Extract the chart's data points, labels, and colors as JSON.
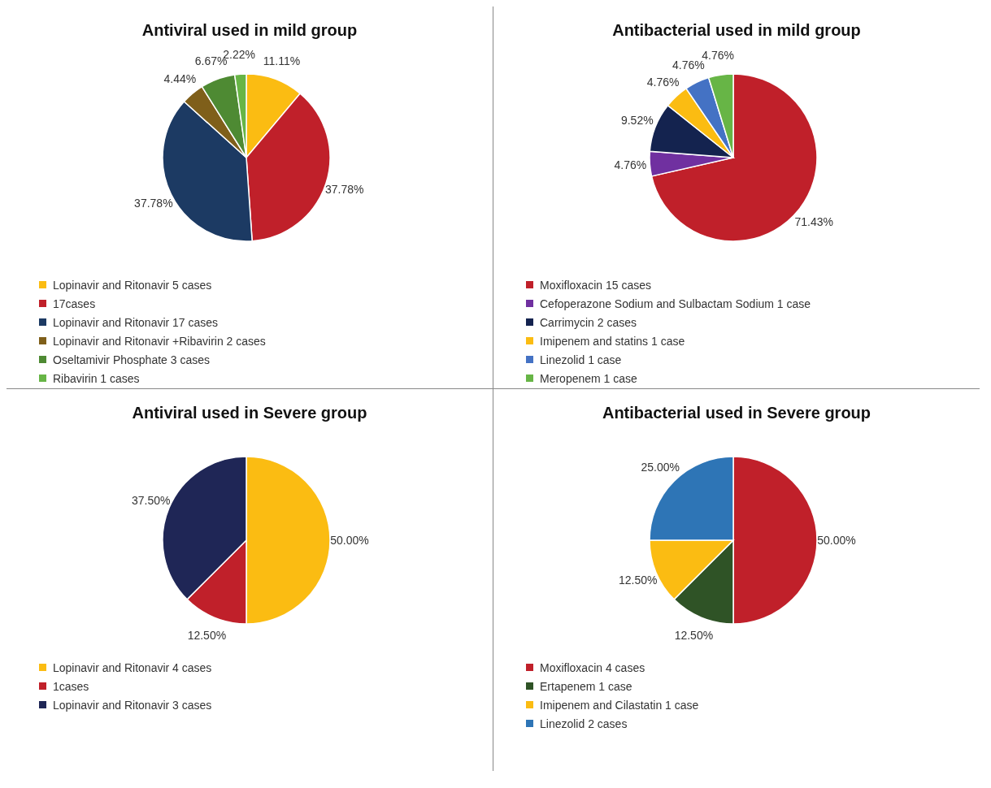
{
  "chart_data": [
    {
      "type": "pie",
      "title": "Antiviral used in mild group",
      "categories": [
        "Lopinavir and Ritonavir 5 cases",
        "17cases",
        "Lopinavir and Ritonavir 17 cases",
        "Lopinavir and Ritonavir +Ribavirin 2 cases",
        "Oseltamivir Phosphate  3 cases",
        "Ribavirin 1 cases"
      ],
      "values": [
        11.11,
        37.78,
        37.78,
        4.44,
        6.67,
        2.22
      ],
      "value_labels": [
        "11.11%",
        "37.78%",
        "37.78%",
        "4.44%",
        "6.67%",
        "2.22%"
      ],
      "colors": [
        "#fbbc12",
        "#c0202a",
        "#1c3a63",
        "#7f5f1a",
        "#4e8a33",
        "#67b546"
      ],
      "legend": "bottom"
    },
    {
      "type": "pie",
      "title": "Antibacterial used in mild group",
      "categories": [
        "Moxifloxacin 15 cases",
        "Cefoperazone Sodium and Sulbactam Sodium 1 case",
        "Carrimycin 2 cases",
        "Imipenem and statins 1 case",
        "Linezolid 1 case",
        "Meropenem 1 case"
      ],
      "values": [
        71.43,
        4.76,
        9.52,
        4.76,
        4.76,
        4.76
      ],
      "value_labels": [
        "71.43%",
        "4.76%",
        "9.52%",
        "4.76%",
        "4.76%",
        "4.76%"
      ],
      "colors": [
        "#c0202a",
        "#7030a0",
        "#14234f",
        "#fbbc12",
        "#4472c4",
        "#67b546"
      ],
      "legend": "bottom"
    },
    {
      "type": "pie",
      "title": "Antiviral used in Severe group",
      "categories": [
        "Lopinavir and Ritonavir 4 cases",
        "1cases",
        "Lopinavir and Ritonavir 3 cases"
      ],
      "values": [
        50,
        12.5,
        37.5
      ],
      "value_labels": [
        "50.00%",
        "12.50%",
        "37.50%"
      ],
      "colors": [
        "#fbbc12",
        "#c0202a",
        "#1f2656"
      ],
      "legend": "bottom"
    },
    {
      "type": "pie",
      "title": "Antibacterial used in Severe group",
      "categories": [
        "Moxifloxacin 4 cases",
        "Ertapenem 1 case",
        "Imipenem and Cilastatin 1 case",
        "Linezolid 2 cases"
      ],
      "values": [
        50,
        12.5,
        12.5,
        25
      ],
      "value_labels": [
        "50.00%",
        "12.50%",
        "12.50%",
        "25.00%"
      ],
      "colors": [
        "#c0202a",
        "#2f5326",
        "#fbbc12",
        "#2e75b6"
      ],
      "legend": "bottom"
    }
  ]
}
